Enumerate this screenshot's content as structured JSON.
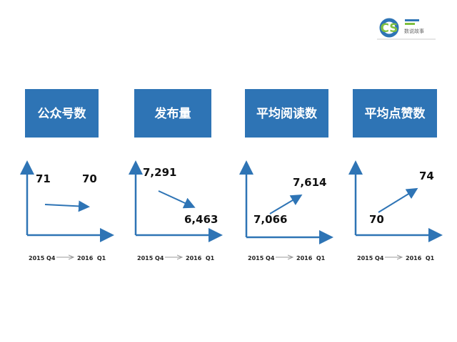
{
  "logo": {
    "mark": "CS",
    "text": "数说故事"
  },
  "panels": [
    {
      "title": "公众号数",
      "from_value": "71",
      "to_value": "70",
      "from_period": "2015 Q4",
      "to_period": "2016  Q1"
    },
    {
      "title": "发布量",
      "from_value": "7,291",
      "to_value": "6,463",
      "from_period": "2015 Q4",
      "to_period": "2016  Q1"
    },
    {
      "title": "平均阅读数",
      "from_value": "7,066",
      "to_value": "7,614",
      "from_period": "2015 Q4",
      "to_period": "2016  Q1"
    },
    {
      "title": "平均点赞数",
      "from_value": "70",
      "to_value": "74",
      "from_period": "2015 Q4",
      "to_period": "2016  Q1"
    }
  ]
}
